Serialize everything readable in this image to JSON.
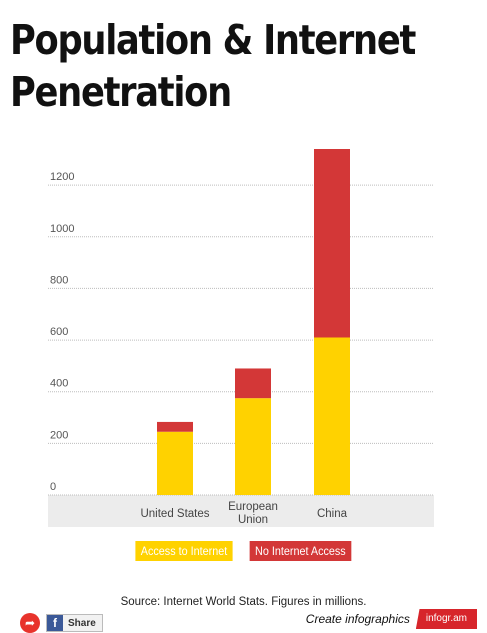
{
  "title_line1": "Population & Internet",
  "title_line2": "Penetration",
  "colors": {
    "access": "#ffd200",
    "no_access": "#d33737",
    "plot_bg": "#ececec",
    "grid": "#bdbdbd"
  },
  "chart_data": {
    "type": "bar",
    "stacked": true,
    "categories": [
      "United States",
      "European Union",
      "China"
    ],
    "category_lines": [
      [
        "United States"
      ],
      [
        "European",
        "Union"
      ],
      [
        "China"
      ]
    ],
    "series": [
      {
        "name": "Access to Internet",
        "values": [
          245,
          375,
          610
        ],
        "color": "#ffd200"
      },
      {
        "name": "No Internet Access",
        "values": [
          38,
          115,
          730
        ],
        "color": "#d33737"
      }
    ],
    "yticks": [
      0,
      200,
      400,
      600,
      800,
      1000,
      1200
    ],
    "ylim": [
      0,
      1340
    ],
    "grid": true,
    "legend_position": "bottom"
  },
  "legend": [
    {
      "label": "Access to Internet",
      "color": "#ffd200"
    },
    {
      "label": "No Internet Access",
      "color": "#d33737"
    }
  ],
  "source": "Source: Internet World Stats. Figures in millions.",
  "footer": {
    "share_label": "Share",
    "create_label": "Create infographics",
    "brand": "infogr.am"
  }
}
